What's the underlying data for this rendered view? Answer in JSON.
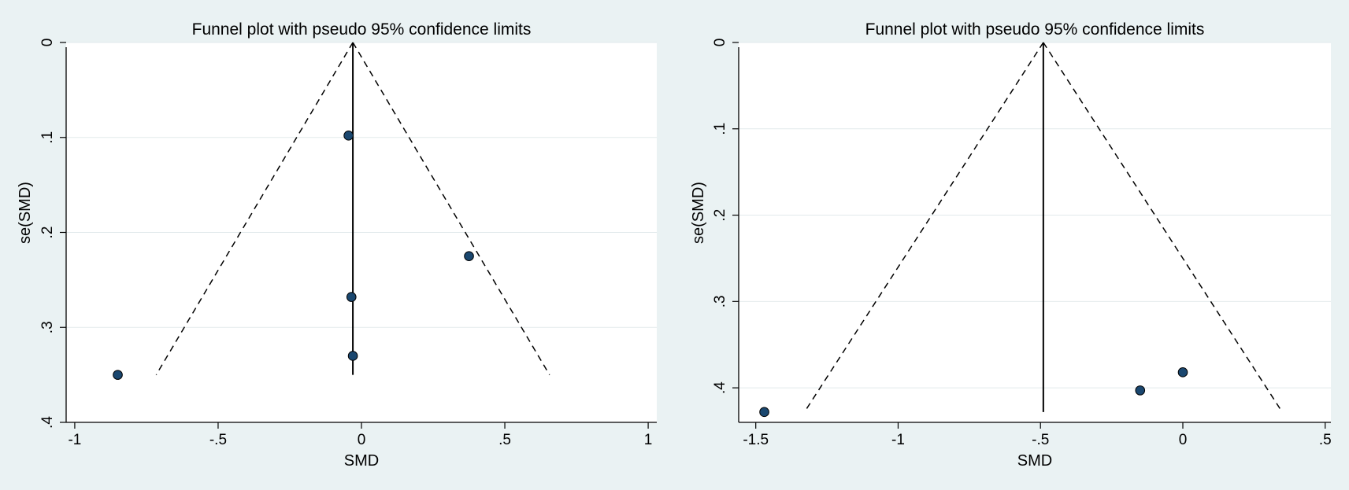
{
  "chart_data": [
    {
      "type": "scatter",
      "title": "Funnel plot with pseudo 95% confidence limits",
      "xlabel": "SMD",
      "ylabel": "se(SMD)",
      "xlim": [
        -1.03,
        1.03
      ],
      "ylim": [
        0.4,
        0
      ],
      "y_reversed": true,
      "grid": true,
      "xticks": [
        -1,
        -0.5,
        0,
        0.5,
        1
      ],
      "xtick_labels": [
        "-1",
        "-.5",
        "0",
        ".5",
        "1"
      ],
      "yticks": [
        0,
        0.1,
        0.2,
        0.3,
        0.4
      ],
      "ytick_labels": [
        "0",
        ".1",
        ".2",
        ".3",
        ".4"
      ],
      "pooled_estimate": -0.03,
      "se_max": 0.35,
      "points": [
        {
          "x": -0.045,
          "y": 0.098
        },
        {
          "x": 0.375,
          "y": 0.225
        },
        {
          "x": -0.035,
          "y": 0.268
        },
        {
          "x": -0.03,
          "y": 0.33
        },
        {
          "x": -0.85,
          "y": 0.35
        }
      ]
    },
    {
      "type": "scatter",
      "title": "Funnel plot with pseudo 95% confidence limits",
      "xlabel": "SMD",
      "ylabel": "se(SMD)",
      "xlim": [
        -1.56,
        0.52
      ],
      "ylim": [
        0.44,
        0
      ],
      "y_reversed": true,
      "grid": true,
      "xticks": [
        -1.5,
        -1,
        -0.5,
        0,
        0.5
      ],
      "xtick_labels": [
        "-1.5",
        "-1",
        "-.5",
        "0",
        ".5"
      ],
      "yticks": [
        0,
        0.1,
        0.2,
        0.3,
        0.4
      ],
      "ytick_labels": [
        "0",
        ".1",
        ".2",
        ".3",
        ".4"
      ],
      "pooled_estimate": -0.49,
      "se_max": 0.428,
      "points": [
        {
          "x": 0.0,
          "y": 0.382
        },
        {
          "x": -0.15,
          "y": 0.403
        },
        {
          "x": -1.47,
          "y": 0.428
        }
      ]
    }
  ]
}
